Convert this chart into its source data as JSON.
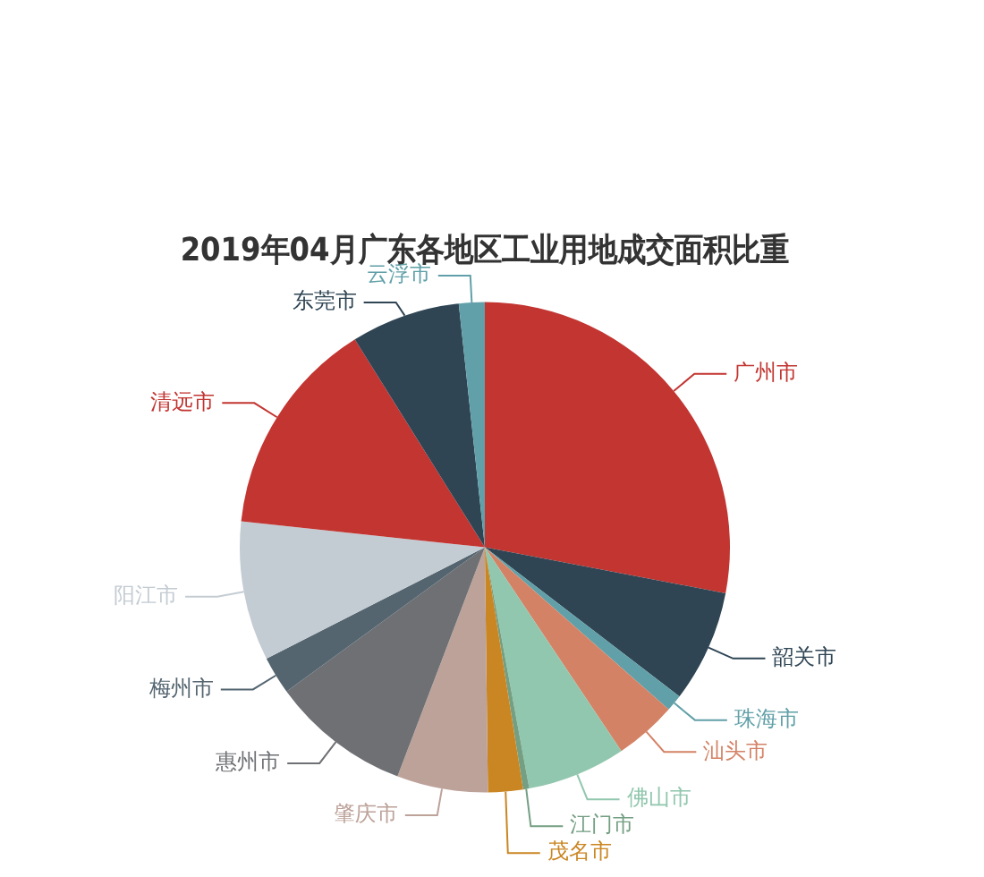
{
  "chart_data": {
    "type": "pie",
    "title": "2019年04月广东各地区工业用地成交面积比重",
    "categories": [
      "广州市",
      "韶关市",
      "珠海市",
      "汕头市",
      "佛山市",
      "江门市",
      "茂名市",
      "肇庆市",
      "惠州市",
      "梅州市",
      "阳江市",
      "清远市",
      "东莞市",
      "云浮市"
    ],
    "values": [
      28,
      7.4,
      1.1,
      4.1,
      6.5,
      0.4,
      2.3,
      6,
      9.2,
      2.5,
      9.2,
      14.4,
      7.2,
      1.7
    ],
    "colors": [
      "#c23531",
      "#2f4554",
      "#61a0a8",
      "#d48265",
      "#91c7ae",
      "#749f83",
      "#ca8622",
      "#bda29a",
      "#6e7074",
      "#546570",
      "#c4ccd3",
      "#c23531",
      "#2f4554",
      "#61a0a8"
    ],
    "legend": false
  }
}
